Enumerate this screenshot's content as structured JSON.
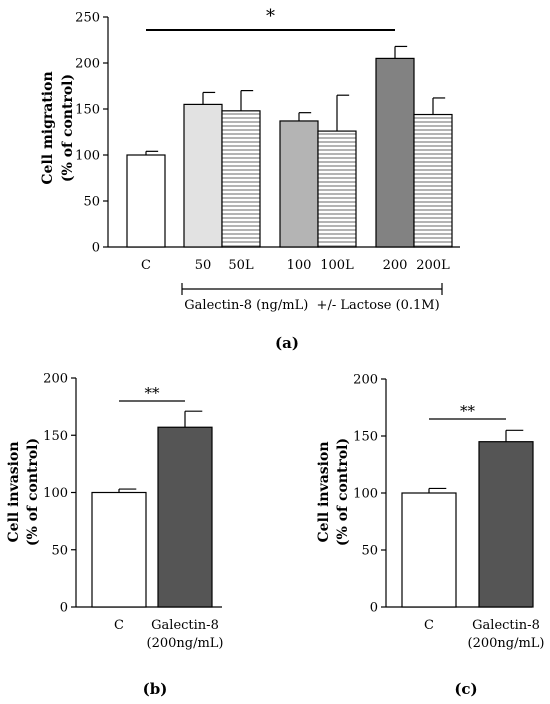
{
  "chart_data": [
    {
      "type": "bar",
      "panel_label": "(a)",
      "ylabel_line1": "Cell migration",
      "ylabel_line2": "(% of control)",
      "ylim": [
        0,
        250
      ],
      "yticks": [
        0,
        50,
        100,
        150,
        200,
        250
      ],
      "categories": [
        "C",
        "50",
        "50L",
        "100",
        "100L",
        "200",
        "200L"
      ],
      "values": [
        100,
        155,
        148,
        137,
        126,
        205,
        144
      ],
      "errors": [
        4,
        13,
        22,
        9,
        39,
        13,
        18
      ],
      "fills": [
        "#ffffff",
        "#e2e2e2",
        "hatch",
        "#b4b4b4",
        "hatch",
        "#828282",
        "hatch"
      ],
      "bracket_label": "Galectin-8 (ng/mL)  +/- Lactose (0.1M)",
      "significance": "*"
    },
    {
      "type": "bar",
      "panel_label": "(b)",
      "ylabel_line1": "Cell invasion",
      "ylabel_line2": "(% of control)",
      "ylim": [
        0,
        200
      ],
      "yticks": [
        0,
        50,
        100,
        150,
        200
      ],
      "categories": [
        "C",
        "Galectin-8"
      ],
      "category_sublabels": [
        "",
        "(200ng/mL)"
      ],
      "values": [
        100,
        157
      ],
      "errors": [
        3,
        14
      ],
      "fills": [
        "#ffffff",
        "#555555"
      ],
      "significance": "**"
    },
    {
      "type": "bar",
      "panel_label": "(c)",
      "ylabel_line1": "Cell invasion",
      "ylabel_line2": "(% of control)",
      "ylim": [
        0,
        200
      ],
      "yticks": [
        0,
        50,
        100,
        150,
        200
      ],
      "categories": [
        "C",
        "Galectin-8"
      ],
      "category_sublabels": [
        "",
        "(200ng/mL)"
      ],
      "values": [
        100,
        145
      ],
      "errors": [
        4,
        10
      ],
      "fills": [
        "#ffffff",
        "#555555"
      ],
      "significance": "**"
    }
  ]
}
